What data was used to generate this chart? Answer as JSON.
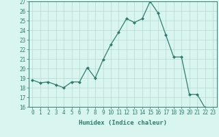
{
  "xlabel": "Humidex (Indice chaleur)",
  "ylabel": "",
  "x": [
    0,
    1,
    2,
    3,
    4,
    5,
    6,
    7,
    8,
    9,
    10,
    11,
    12,
    13,
    14,
    15,
    16,
    17,
    18,
    19,
    20,
    21,
    22,
    23
  ],
  "y": [
    18.8,
    18.5,
    18.6,
    18.3,
    18.0,
    18.6,
    18.6,
    20.1,
    19.0,
    20.9,
    22.5,
    23.8,
    25.2,
    24.8,
    25.2,
    27.0,
    25.8,
    23.5,
    21.2,
    21.2,
    17.3,
    17.3,
    15.9,
    15.8
  ],
  "line_color": "#2e7d6e",
  "marker": "D",
  "marker_size": 2,
  "bg_color": "#d8f5f0",
  "grid_color": "#b8d8d0",
  "ylim": [
    16,
    27
  ],
  "yticks": [
    16,
    17,
    18,
    19,
    20,
    21,
    22,
    23,
    24,
    25,
    26,
    27
  ],
  "xticks": [
    0,
    1,
    2,
    3,
    4,
    5,
    6,
    7,
    8,
    9,
    10,
    11,
    12,
    13,
    14,
    15,
    16,
    17,
    18,
    19,
    20,
    21,
    22,
    23
  ],
  "label_fontsize": 6.5,
  "tick_fontsize": 5.5
}
